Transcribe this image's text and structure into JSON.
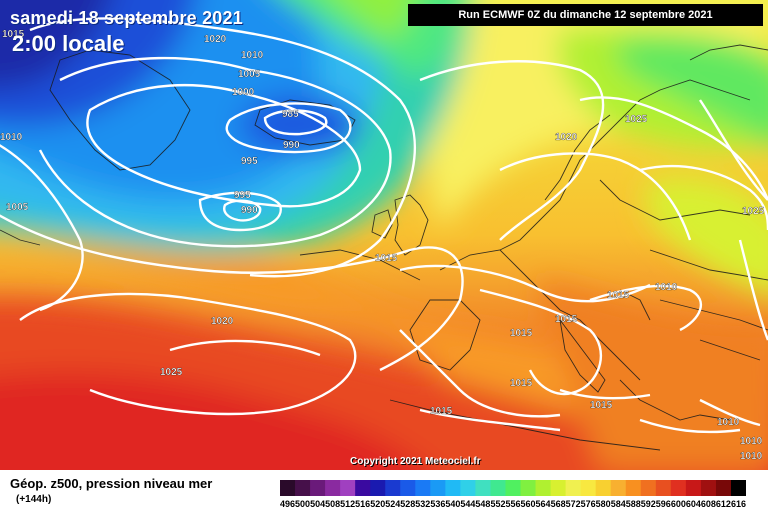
{
  "header": {
    "date": "samedi 18 septembre 2021",
    "time": "2:00 locale",
    "run": "Run ECMWF 0Z du dimanche 12 septembre 2021"
  },
  "copyright": "Copyright 2021 Meteociel.fr",
  "legend": {
    "title": "Géop. z500, pression niveau mer",
    "subtitle": "(+144h)",
    "scale_values": [
      "496",
      "500",
      "504",
      "508",
      "512",
      "516",
      "520",
      "524",
      "528",
      "532",
      "536",
      "540",
      "544",
      "548",
      "552",
      "556",
      "560",
      "564",
      "568",
      "572",
      "576",
      "580",
      "584",
      "588",
      "592",
      "596",
      "600",
      "604",
      "608",
      "612",
      "616"
    ],
    "scale_colors": [
      "#2a0a2a",
      "#46104a",
      "#6a1a7a",
      "#8a2aa0",
      "#a040c0",
      "#3a0aa0",
      "#1a1ab0",
      "#1a3ad0",
      "#1a5ae8",
      "#1a7af5",
      "#1a9af5",
      "#20baf5",
      "#30d0e8",
      "#40e0c0",
      "#40e890",
      "#50f060",
      "#80f040",
      "#b0f030",
      "#d8f030",
      "#f0f050",
      "#f8e840",
      "#f8d030",
      "#f8b030",
      "#f89020",
      "#f07020",
      "#e85020",
      "#e03020",
      "#c81818",
      "#a01010",
      "#780808",
      "#000000"
    ]
  },
  "isobars": [
    "1015",
    "1020",
    "1010",
    "1005",
    "1000",
    "985",
    "990",
    "1010",
    "995",
    "1005",
    "995",
    "990",
    "1020",
    "1025",
    "1025",
    "1015",
    "1010",
    "1015",
    "1020",
    "1015",
    "1015",
    "1015",
    "1015",
    "1025",
    "1015",
    "1010",
    "1010",
    "1010"
  ],
  "colors": {
    "run_box": "#000000",
    "text_light": "#ffffff"
  }
}
